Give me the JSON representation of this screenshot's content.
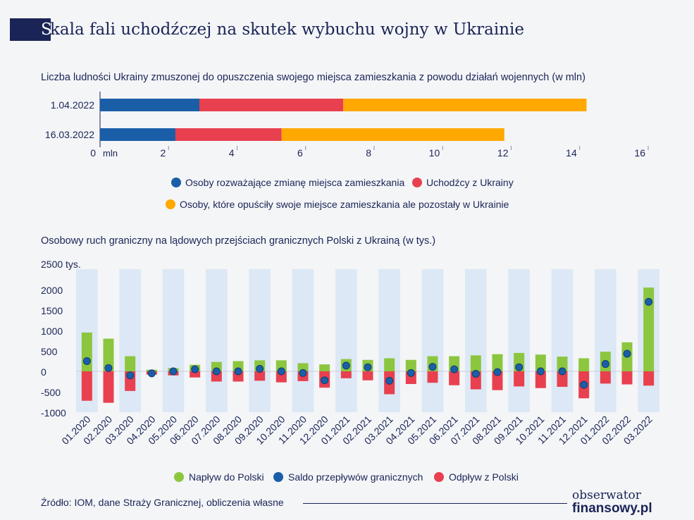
{
  "title_first": "S",
  "title_rest": "kala fali uchodźczej na skutek wybuchu wojny w Ukrainie",
  "source": "Źródło:  IOM, dane Straży Granicznej, obliczenia własne",
  "logo": {
    "line1": "obserwator",
    "line2": "finansowy.pl"
  },
  "colors": {
    "navy": "#1a2456",
    "blue": "#1a5ea8",
    "red": "#e8404f",
    "orange": "#ffa800",
    "green": "#8cc63f",
    "stripe": "#dce8f5"
  },
  "chart_data": [
    {
      "type": "bar",
      "orientation": "horizontal",
      "stacked": true,
      "title": "Liczba ludności Ukrainy zmuszonej do opuszczenia swojego miejsca zamieszkania z powodu działań wojennych (w mln)",
      "categories": [
        "1.04.2022",
        "16.03.2022"
      ],
      "series": [
        {
          "name": "Osoby rozważające zmianę miejsca zamieszkania",
          "values": [
            2.9,
            2.2
          ],
          "color": "#1a5ea8"
        },
        {
          "name": "Uchodźcy z Ukrainy",
          "values": [
            4.2,
            3.1
          ],
          "color": "#e8404f"
        },
        {
          "name": "Osoby, które opuściły swoje miejsce zamieszkania ale pozostały w Ukrainie",
          "values": [
            7.1,
            6.5
          ],
          "color": "#ffa800"
        }
      ],
      "xlim": [
        0,
        16
      ],
      "xticks": [
        "0",
        "2",
        "4",
        "6",
        "8",
        "10",
        "12",
        "14",
        "16"
      ],
      "xunit": "mln",
      "legend_position": "bottom"
    },
    {
      "type": "bar",
      "title": "Osobowy ruch graniczny na lądowych przejściach granicznych Polski z Ukrainą  (w tys.)",
      "categories": [
        "01.2020",
        "02.2020",
        "03.2020",
        "04.2020",
        "05.2020",
        "06.2020",
        "07.2020",
        "08.2020",
        "09.2020",
        "10.2020",
        "11.2020",
        "12.2020",
        "01.2021",
        "02.2021",
        "03.2021",
        "04.2021",
        "05.2021",
        "06.2021",
        "07.2021",
        "08.2021",
        "09.2021",
        "10.2021",
        "11.2021",
        "12.2021",
        "01.2022",
        "02.2022",
        "03.2022"
      ],
      "series": [
        {
          "name": "Napływ do Polski",
          "kind": "bar",
          "color": "#8cc63f",
          "values": [
            950,
            800,
            370,
            40,
            80,
            160,
            230,
            250,
            270,
            270,
            200,
            170,
            300,
            280,
            320,
            280,
            370,
            370,
            390,
            420,
            450,
            410,
            360,
            320,
            480,
            710,
            2050
          ]
        },
        {
          "name": "Saldo przepływów granicznych",
          "kind": "point",
          "color": "#1a5ea8",
          "values": [
            250,
            80,
            -100,
            -50,
            0,
            50,
            0,
            0,
            60,
            0,
            -40,
            -220,
            140,
            100,
            -230,
            -40,
            110,
            50,
            -60,
            -20,
            100,
            0,
            0,
            -330,
            180,
            430,
            1700
          ]
        },
        {
          "name": "Odpływ z Polski",
          "kind": "bar",
          "color": "#e8404f",
          "values": [
            -720,
            -770,
            -480,
            -80,
            -100,
            -150,
            -250,
            -250,
            -230,
            -270,
            -240,
            -400,
            -170,
            -220,
            -560,
            -310,
            -280,
            -340,
            -440,
            -460,
            -370,
            -410,
            -380,
            -660,
            -300,
            -320,
            -350
          ]
        }
      ],
      "ylim": [
        -1000,
        2500
      ],
      "yticks": [
        "2500 tys.",
        "2000",
        "1500",
        "1000",
        "500",
        "0",
        "-500",
        "-1000"
      ],
      "legend_position": "bottom"
    }
  ]
}
